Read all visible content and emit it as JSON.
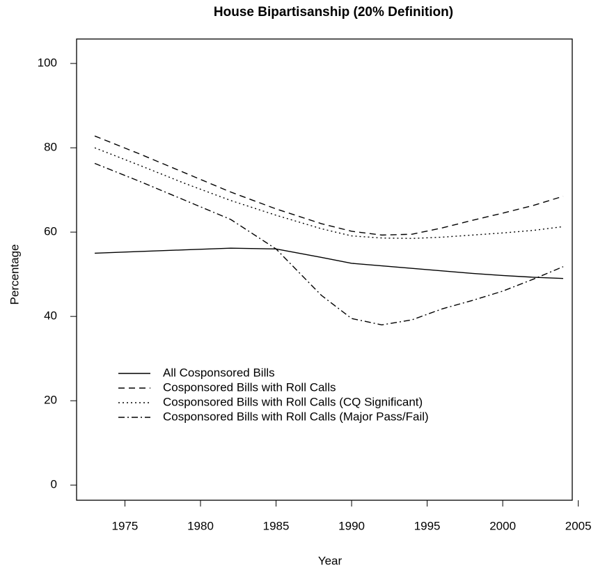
{
  "chart_data": {
    "type": "line",
    "title": "House Bipartisanship (20% Definition)",
    "x_label": "Year",
    "y_label": "Percentage",
    "x": [
      1973,
      1976,
      1979,
      1982,
      1985,
      1988,
      1990,
      1992,
      1994,
      1996,
      1998,
      2000,
      2002,
      2004
    ],
    "series": [
      {
        "name": "All Cosponsored Bills",
        "color": "#000000",
        "dash": "solid",
        "values": [
          55,
          55.4,
          55.8,
          56.2,
          56,
          54,
          52.6,
          52,
          51.4,
          50.8,
          50.2,
          49.7,
          49.3,
          49
        ]
      },
      {
        "name": "Cosponsored Bills with Roll Calls",
        "color": "#000000",
        "dash": "dashed",
        "values": [
          82.8,
          78.5,
          74,
          69.5,
          65.5,
          62,
          60.2,
          59.3,
          59.5,
          61,
          62.8,
          64.5,
          66.3,
          68.5
        ]
      },
      {
        "name": "Cosponsored Bills with Roll Calls (CQ Significant)",
        "color": "#000000",
        "dash": "dotted",
        "values": [
          80,
          75.8,
          71.5,
          67.5,
          64,
          60.8,
          59.1,
          58.6,
          58.5,
          58.8,
          59.3,
          59.8,
          60.4,
          61.3
        ]
      },
      {
        "name": "Cosponsored Bills with Roll Calls (Major Pass/Fail)",
        "color": "#000000",
        "dash": "dashdot",
        "values": [
          76.3,
          72,
          67.5,
          63,
          56,
          45,
          39.5,
          38,
          39.2,
          41.8,
          43.8,
          46,
          48.8,
          51.8
        ]
      }
    ],
    "xlim": [
      1971.8,
      2004.6
    ],
    "xticks": [
      1975,
      1980,
      1985,
      1990,
      1995,
      2000,
      2005
    ],
    "ylim": [
      -3.6,
      105.8
    ],
    "yticks": [
      0,
      20,
      40,
      60,
      80,
      100
    ],
    "grid": false,
    "legend": "bottom-left"
  }
}
